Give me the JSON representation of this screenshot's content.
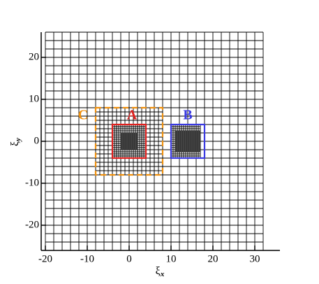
{
  "chart_data": {
    "type": "mesh",
    "xlabel": "ξ",
    "xlabel_sub": "x",
    "ylabel": "ξ",
    "ylabel_sub": "y",
    "xlim": [
      -21,
      36
    ],
    "ylim": [
      -26,
      26
    ],
    "xticks": [
      -20,
      -10,
      0,
      10,
      20,
      30
    ],
    "yticks": [
      -20,
      -10,
      0,
      10,
      20
    ],
    "mesh_color": "#000000",
    "mesh": [
      {
        "spacing": 2,
        "x": [
          -20,
          32
        ],
        "y": [
          -26,
          26
        ]
      },
      {
        "spacing": 1,
        "x": [
          -8,
          8
        ],
        "y": [
          -8,
          8
        ]
      },
      {
        "spacing": 0.5,
        "x": [
          -4,
          4
        ],
        "y": [
          -4,
          4
        ]
      },
      {
        "spacing": 0.25,
        "x": [
          -2,
          2
        ],
        "y": [
          -2,
          2
        ]
      },
      {
        "spacing": 0.5,
        "x": [
          10,
          17
        ],
        "y": [
          -4,
          4
        ]
      },
      {
        "spacing": 0.25,
        "x": [
          11,
          17
        ],
        "y": [
          -2.5,
          2.5
        ]
      }
    ],
    "regions": [
      {
        "label": "A",
        "color": "#e0201e",
        "dashed": false,
        "x": [
          -4,
          4
        ],
        "y": [
          -4,
          4
        ]
      },
      {
        "label": "B",
        "color": "#3a3ae0",
        "dashed": false,
        "x": [
          10,
          18
        ],
        "y": [
          -4,
          4
        ]
      },
      {
        "label": "C",
        "color": "#f0900c",
        "dashed": true,
        "x": [
          -8,
          8
        ],
        "y": [
          -8,
          8
        ]
      }
    ]
  }
}
